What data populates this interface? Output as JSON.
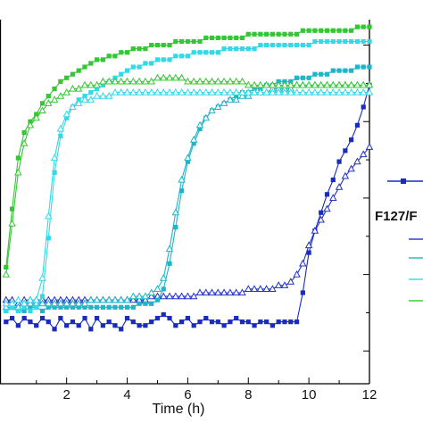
{
  "chart_data": {
    "type": "line",
    "xlabel": "Time (h)",
    "ylabel": "",
    "xlim": [
      -0.2,
      12
    ],
    "ylim": [
      0,
      1
    ],
    "x_ticks": [
      2,
      4,
      6,
      8,
      10,
      12
    ],
    "grid": false,
    "legend": {
      "placement": "right",
      "header": "F127/F",
      "entries": [
        {
          "marker": "filled-square",
          "color": "#1a2bbf"
        },
        {
          "marker": "line",
          "color": "#2233c8"
        },
        {
          "marker": "line",
          "color": "#1fb5c8"
        },
        {
          "marker": "line",
          "color": "#33d9e8"
        },
        {
          "marker": "line",
          "color": "#33c833"
        }
      ]
    },
    "series": [
      {
        "marker": "filled-square",
        "color": "#1a2bbf",
        "x": [
          0,
          0.2,
          0.4,
          0.6,
          0.8,
          1.0,
          1.2,
          1.4,
          1.6,
          1.8,
          2.0,
          2.2,
          2.4,
          2.6,
          2.8,
          3.0,
          3.2,
          3.4,
          3.6,
          3.8,
          4.0,
          4.2,
          4.4,
          4.6,
          4.8,
          5.0,
          5.2,
          5.4,
          5.6,
          5.8,
          6.0,
          6.2,
          6.4,
          6.6,
          6.8,
          7.0,
          7.2,
          7.4,
          7.6,
          7.8,
          8.0,
          8.2,
          8.4,
          8.6,
          8.8,
          9.0,
          9.2,
          9.4,
          9.6,
          9.8,
          10.0,
          10.2,
          10.4,
          10.6,
          10.8,
          11.0,
          11.2,
          11.4,
          11.6,
          11.8,
          12.0
        ],
        "y": [
          0.17,
          0.18,
          0.16,
          0.18,
          0.17,
          0.16,
          0.18,
          0.17,
          0.15,
          0.18,
          0.16,
          0.17,
          0.16,
          0.18,
          0.15,
          0.18,
          0.16,
          0.17,
          0.16,
          0.15,
          0.18,
          0.17,
          0.16,
          0.16,
          0.17,
          0.18,
          0.19,
          0.18,
          0.16,
          0.17,
          0.18,
          0.16,
          0.17,
          0.18,
          0.17,
          0.17,
          0.16,
          0.17,
          0.18,
          0.17,
          0.17,
          0.16,
          0.17,
          0.17,
          0.16,
          0.17,
          0.17,
          0.17,
          0.17,
          0.25,
          0.36,
          0.42,
          0.47,
          0.52,
          0.56,
          0.61,
          0.64,
          0.67,
          0.71,
          0.76,
          0.82
        ]
      },
      {
        "marker": "open-triangle",
        "color": "#2233c8",
        "x": [
          0,
          0.2,
          0.4,
          0.6,
          0.8,
          1.0,
          1.2,
          1.4,
          1.6,
          1.8,
          2.0,
          2.2,
          2.4,
          2.6,
          2.8,
          3.0,
          3.2,
          3.4,
          3.6,
          3.8,
          4.0,
          4.2,
          4.4,
          4.6,
          4.8,
          5.0,
          5.2,
          5.4,
          5.6,
          5.8,
          6.0,
          6.2,
          6.4,
          6.6,
          6.8,
          7.0,
          7.2,
          7.4,
          7.6,
          7.8,
          8.0,
          8.2,
          8.4,
          8.6,
          8.8,
          9.0,
          9.2,
          9.4,
          9.6,
          9.8,
          10.0,
          10.2,
          10.4,
          10.6,
          10.8,
          11.0,
          11.2,
          11.4,
          11.6,
          11.8,
          12.0
        ],
        "y": [
          0.23,
          0.23,
          0.22,
          0.23,
          0.23,
          0.23,
          0.23,
          0.23,
          0.23,
          0.23,
          0.23,
          0.23,
          0.23,
          0.23,
          0.23,
          0.23,
          0.23,
          0.23,
          0.23,
          0.23,
          0.23,
          0.23,
          0.23,
          0.23,
          0.24,
          0.24,
          0.24,
          0.24,
          0.24,
          0.24,
          0.24,
          0.24,
          0.25,
          0.25,
          0.25,
          0.25,
          0.25,
          0.25,
          0.25,
          0.25,
          0.26,
          0.26,
          0.26,
          0.26,
          0.26,
          0.27,
          0.27,
          0.28,
          0.3,
          0.33,
          0.38,
          0.42,
          0.45,
          0.48,
          0.51,
          0.54,
          0.57,
          0.59,
          0.61,
          0.63,
          0.65
        ]
      },
      {
        "marker": "filled-square",
        "color": "#1fb5c8",
        "x": [
          0,
          0.2,
          0.4,
          0.6,
          0.8,
          1.0,
          1.2,
          1.4,
          1.6,
          1.8,
          2.0,
          2.2,
          2.4,
          2.6,
          2.8,
          3.0,
          3.2,
          3.4,
          3.6,
          3.8,
          4.0,
          4.2,
          4.4,
          4.6,
          4.8,
          5.0,
          5.2,
          5.4,
          5.6,
          5.8,
          6.0,
          6.2,
          6.4,
          6.6,
          6.8,
          7.0,
          7.2,
          7.4,
          7.6,
          7.8,
          8.0,
          8.2,
          8.4,
          8.6,
          8.8,
          9.0,
          9.2,
          9.4,
          9.6,
          9.8,
          10.0,
          10.2,
          10.4,
          10.6,
          10.8,
          11.0,
          11.2,
          11.4,
          11.6,
          11.8,
          12.0
        ],
        "y": [
          0.2,
          0.21,
          0.2,
          0.2,
          0.21,
          0.21,
          0.2,
          0.21,
          0.21,
          0.21,
          0.21,
          0.21,
          0.21,
          0.21,
          0.21,
          0.21,
          0.21,
          0.21,
          0.21,
          0.21,
          0.21,
          0.21,
          0.22,
          0.22,
          0.22,
          0.23,
          0.26,
          0.33,
          0.43,
          0.53,
          0.61,
          0.66,
          0.7,
          0.73,
          0.75,
          0.76,
          0.77,
          0.78,
          0.79,
          0.8,
          0.8,
          0.81,
          0.81,
          0.82,
          0.82,
          0.83,
          0.83,
          0.83,
          0.84,
          0.84,
          0.84,
          0.85,
          0.85,
          0.85,
          0.86,
          0.86,
          0.86,
          0.86,
          0.87,
          0.87,
          0.87
        ]
      },
      {
        "marker": "open-triangle",
        "color": "#1fb5c8",
        "x": [
          0,
          0.2,
          0.4,
          0.6,
          0.8,
          1.0,
          1.2,
          1.4,
          1.6,
          1.8,
          2.0,
          2.2,
          2.4,
          2.6,
          2.8,
          3.0,
          3.2,
          3.4,
          3.6,
          3.8,
          4.0,
          4.2,
          4.4,
          4.6,
          4.8,
          5.0,
          5.2,
          5.4,
          5.6,
          5.8,
          6.0,
          6.2,
          6.4,
          6.6,
          6.8,
          7.0,
          7.2,
          7.4,
          7.6,
          7.8,
          8.0,
          8.2,
          8.4,
          8.6,
          8.8,
          9.0,
          9.2,
          9.4,
          9.6,
          9.8,
          10.0,
          10.2,
          10.4,
          10.6,
          10.8,
          11.0,
          11.2,
          11.4,
          11.6,
          11.8,
          12.0
        ],
        "y": [
          0.21,
          0.21,
          0.21,
          0.22,
          0.22,
          0.22,
          0.22,
          0.22,
          0.22,
          0.22,
          0.22,
          0.22,
          0.22,
          0.22,
          0.23,
          0.23,
          0.23,
          0.23,
          0.23,
          0.23,
          0.23,
          0.24,
          0.24,
          0.24,
          0.25,
          0.26,
          0.29,
          0.37,
          0.47,
          0.56,
          0.62,
          0.67,
          0.71,
          0.73,
          0.75,
          0.76,
          0.77,
          0.78,
          0.78,
          0.79,
          0.79,
          0.8,
          0.8,
          0.8,
          0.81,
          0.81,
          0.81,
          0.81,
          0.82,
          0.82,
          0.82,
          0.82,
          0.82,
          0.82,
          0.82,
          0.82,
          0.82,
          0.82,
          0.82,
          0.82,
          0.82
        ]
      },
      {
        "marker": "filled-square",
        "color": "#33d9e8",
        "x": [
          0,
          0.2,
          0.4,
          0.6,
          0.8,
          1.0,
          1.2,
          1.4,
          1.6,
          1.8,
          2.0,
          2.2,
          2.4,
          2.6,
          2.8,
          3.0,
          3.2,
          3.4,
          3.6,
          3.8,
          4.0,
          4.2,
          4.4,
          4.6,
          4.8,
          5.0,
          5.2,
          5.4,
          5.6,
          5.8,
          6.0,
          6.2,
          6.4,
          6.6,
          6.8,
          7.0,
          7.2,
          7.4,
          7.6,
          7.8,
          8.0,
          8.2,
          8.4,
          8.6,
          8.8,
          9.0,
          9.2,
          9.4,
          9.6,
          9.8,
          10.0,
          10.2,
          10.4,
          10.6,
          10.8,
          11.0,
          11.2,
          11.4,
          11.6,
          11.8,
          12.0
        ],
        "y": [
          0.2,
          0.21,
          0.2,
          0.21,
          0.2,
          0.21,
          0.24,
          0.4,
          0.58,
          0.68,
          0.73,
          0.76,
          0.78,
          0.79,
          0.8,
          0.81,
          0.82,
          0.83,
          0.84,
          0.85,
          0.86,
          0.87,
          0.87,
          0.88,
          0.88,
          0.89,
          0.89,
          0.89,
          0.9,
          0.9,
          0.9,
          0.91,
          0.91,
          0.91,
          0.91,
          0.91,
          0.92,
          0.92,
          0.92,
          0.92,
          0.92,
          0.92,
          0.93,
          0.93,
          0.93,
          0.93,
          0.93,
          0.93,
          0.93,
          0.93,
          0.93,
          0.94,
          0.94,
          0.94,
          0.94,
          0.94,
          0.94,
          0.94,
          0.94,
          0.94,
          0.94
        ]
      },
      {
        "marker": "open-triangle",
        "color": "#33d9e8",
        "x": [
          0,
          0.2,
          0.4,
          0.6,
          0.8,
          1.0,
          1.2,
          1.4,
          1.6,
          1.8,
          2.0,
          2.2,
          2.4,
          2.6,
          2.8,
          3.0,
          3.2,
          3.4,
          3.6,
          3.8,
          4.0,
          4.2,
          4.4,
          4.6,
          4.8,
          5.0,
          5.2,
          5.4,
          5.6,
          5.8,
          6.0,
          6.2,
          6.4,
          6.6,
          6.8,
          7.0,
          7.2,
          7.4,
          7.6,
          7.8,
          8.0,
          8.2,
          8.4,
          8.6,
          8.8,
          9.0,
          9.2,
          9.4,
          9.6,
          9.8,
          10.0,
          10.2,
          10.4,
          10.6,
          10.8,
          11.0,
          11.2,
          11.4,
          11.6,
          11.8,
          12.0
        ],
        "y": [
          0.22,
          0.22,
          0.23,
          0.22,
          0.23,
          0.23,
          0.29,
          0.46,
          0.62,
          0.7,
          0.74,
          0.76,
          0.77,
          0.78,
          0.78,
          0.79,
          0.79,
          0.79,
          0.8,
          0.8,
          0.8,
          0.8,
          0.8,
          0.8,
          0.8,
          0.8,
          0.8,
          0.8,
          0.8,
          0.8,
          0.8,
          0.8,
          0.8,
          0.8,
          0.8,
          0.8,
          0.8,
          0.8,
          0.8,
          0.8,
          0.8,
          0.8,
          0.8,
          0.8,
          0.8,
          0.8,
          0.8,
          0.8,
          0.8,
          0.8,
          0.8,
          0.8,
          0.8,
          0.8,
          0.8,
          0.8,
          0.8,
          0.8,
          0.8,
          0.8,
          0.8
        ]
      },
      {
        "marker": "filled-square",
        "color": "#33c833",
        "x": [
          0,
          0.2,
          0.4,
          0.6,
          0.8,
          1.0,
          1.2,
          1.4,
          1.6,
          1.8,
          2.0,
          2.2,
          2.4,
          2.6,
          2.8,
          3.0,
          3.2,
          3.4,
          3.6,
          3.8,
          4.0,
          4.2,
          4.4,
          4.6,
          4.8,
          5.0,
          5.2,
          5.4,
          5.6,
          5.8,
          6.0,
          6.2,
          6.4,
          6.6,
          6.8,
          7.0,
          7.2,
          7.4,
          7.6,
          7.8,
          8.0,
          8.2,
          8.4,
          8.6,
          8.8,
          9.0,
          9.2,
          9.4,
          9.6,
          9.8,
          10.0,
          10.2,
          10.4,
          10.6,
          10.8,
          11.0,
          11.2,
          11.4,
          11.6,
          11.8,
          12.0
        ],
        "y": [
          0.32,
          0.48,
          0.62,
          0.69,
          0.72,
          0.74,
          0.77,
          0.79,
          0.81,
          0.83,
          0.84,
          0.85,
          0.86,
          0.87,
          0.88,
          0.89,
          0.89,
          0.9,
          0.9,
          0.91,
          0.91,
          0.92,
          0.92,
          0.92,
          0.93,
          0.93,
          0.93,
          0.93,
          0.94,
          0.94,
          0.94,
          0.94,
          0.94,
          0.95,
          0.95,
          0.95,
          0.95,
          0.95,
          0.95,
          0.95,
          0.96,
          0.96,
          0.96,
          0.96,
          0.96,
          0.96,
          0.96,
          0.96,
          0.96,
          0.97,
          0.97,
          0.97,
          0.97,
          0.97,
          0.97,
          0.97,
          0.97,
          0.97,
          0.98,
          0.98,
          0.98
        ]
      },
      {
        "marker": "open-triangle",
        "color": "#33c833",
        "x": [
          0,
          0.2,
          0.4,
          0.6,
          0.8,
          1.0,
          1.2,
          1.4,
          1.6,
          1.8,
          2.0,
          2.2,
          2.4,
          2.6,
          2.8,
          3.0,
          3.2,
          3.4,
          3.6,
          3.8,
          4.0,
          4.2,
          4.4,
          4.6,
          4.8,
          5.0,
          5.2,
          5.4,
          5.6,
          5.8,
          6.0,
          6.2,
          6.4,
          6.6,
          6.8,
          7.0,
          7.2,
          7.4,
          7.6,
          7.8,
          8.0,
          8.2,
          8.4,
          8.6,
          8.8,
          9.0,
          9.2,
          9.4,
          9.6,
          9.8,
          10.0,
          10.2,
          10.4,
          10.6,
          10.8,
          11.0,
          11.2,
          11.4,
          11.6,
          11.8,
          12.0
        ],
        "y": [
          0.3,
          0.44,
          0.58,
          0.66,
          0.71,
          0.73,
          0.75,
          0.77,
          0.78,
          0.79,
          0.8,
          0.81,
          0.81,
          0.82,
          0.82,
          0.82,
          0.83,
          0.83,
          0.83,
          0.83,
          0.83,
          0.83,
          0.83,
          0.83,
          0.83,
          0.84,
          0.84,
          0.84,
          0.84,
          0.84,
          0.83,
          0.83,
          0.83,
          0.83,
          0.83,
          0.83,
          0.83,
          0.83,
          0.83,
          0.83,
          0.82,
          0.82,
          0.82,
          0.82,
          0.82,
          0.82,
          0.82,
          0.82,
          0.82,
          0.82,
          0.82,
          0.82,
          0.82,
          0.82,
          0.82,
          0.82,
          0.82,
          0.82,
          0.82,
          0.82,
          0.82
        ]
      }
    ]
  }
}
